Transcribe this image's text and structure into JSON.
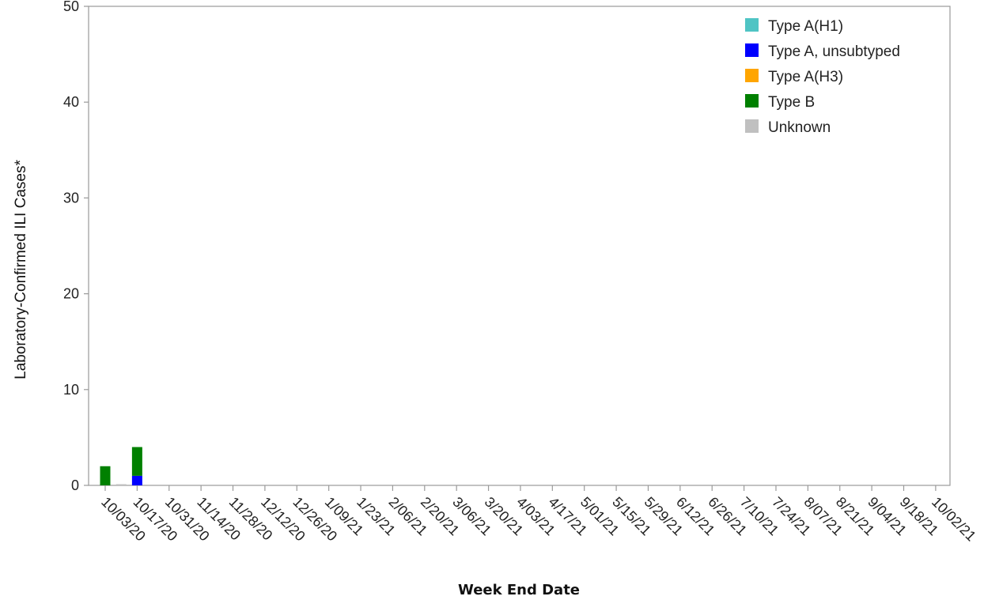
{
  "chart_data": {
    "type": "bar",
    "stacked": true,
    "xlabel": "Week End Date",
    "ylabel": "Laboratory-Confirmed ILI Cases*",
    "ylim": [
      0,
      50
    ],
    "yticks": [
      0,
      10,
      20,
      30,
      40,
      50
    ],
    "tick_labels": [
      "10/03/20",
      "10/17/20",
      "10/31/20",
      "11/14/20",
      "11/28/20",
      "12/12/20",
      "12/26/20",
      "1/09/21",
      "1/23/21",
      "2/06/21",
      "2/20/21",
      "3/06/21",
      "3/20/21",
      "4/03/21",
      "4/17/21",
      "5/01/21",
      "5/15/21",
      "5/29/21",
      "6/12/21",
      "6/26/21",
      "7/10/21",
      "7/24/21",
      "8/07/21",
      "8/21/21",
      "9/04/21",
      "9/18/21",
      "10/02/21"
    ],
    "weeks": 53,
    "grid": false,
    "legend": "top-right",
    "series": [
      {
        "name": "Type A(H1)",
        "color": "#4fc4c4",
        "bars": []
      },
      {
        "name": "Type A, unsubtyped",
        "color": "#0000ff",
        "bars": [
          {
            "week": 2,
            "value": 1
          }
        ]
      },
      {
        "name": "Type A(H3)",
        "color": "#ffa500",
        "bars": []
      },
      {
        "name": "Type B",
        "color": "#008000",
        "bars": [
          {
            "week": 0,
            "value": 2
          },
          {
            "week": 2,
            "value": 3
          }
        ]
      },
      {
        "name": "Unknown",
        "color": "#c0c0c0",
        "bars": [
          {
            "week": 1,
            "value": 0.1
          }
        ]
      }
    ]
  }
}
